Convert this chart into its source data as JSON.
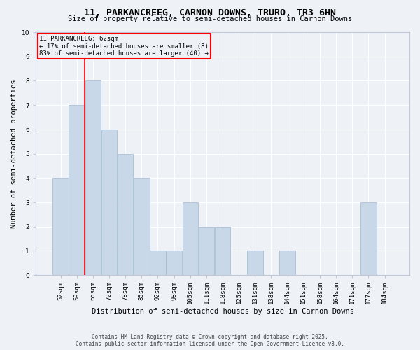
{
  "title": "11, PARKANCREEG, CARNON DOWNS, TRURO, TR3 6HN",
  "subtitle": "Size of property relative to semi-detached houses in Carnon Downs",
  "xlabel": "Distribution of semi-detached houses by size in Carnon Downs",
  "ylabel": "Number of semi-detached properties",
  "categories": [
    "52sqm",
    "59sqm",
    "65sqm",
    "72sqm",
    "78sqm",
    "85sqm",
    "92sqm",
    "98sqm",
    "105sqm",
    "111sqm",
    "118sqm",
    "125sqm",
    "131sqm",
    "138sqm",
    "144sqm",
    "151sqm",
    "158sqm",
    "164sqm",
    "171sqm",
    "177sqm",
    "184sqm"
  ],
  "values": [
    4,
    7,
    8,
    6,
    5,
    4,
    1,
    1,
    3,
    2,
    2,
    0,
    1,
    0,
    1,
    0,
    0,
    0,
    0,
    3,
    0
  ],
  "bar_color": "#c8d8e8",
  "bar_edge_color": "#a0b8d0",
  "ylim": [
    0,
    10
  ],
  "yticks": [
    0,
    1,
    2,
    3,
    4,
    5,
    6,
    7,
    8,
    9,
    10
  ],
  "property_label": "11 PARKANCREEG: 62sqm",
  "pct_smaller": 17,
  "pct_larger": 83,
  "n_smaller": 8,
  "n_larger": 40,
  "vline_position": 1.5,
  "footer1": "Contains HM Land Registry data © Crown copyright and database right 2025.",
  "footer2": "Contains public sector information licensed under the Open Government Licence v3.0.",
  "background_color": "#eef2f7",
  "grid_color": "#ffffff"
}
